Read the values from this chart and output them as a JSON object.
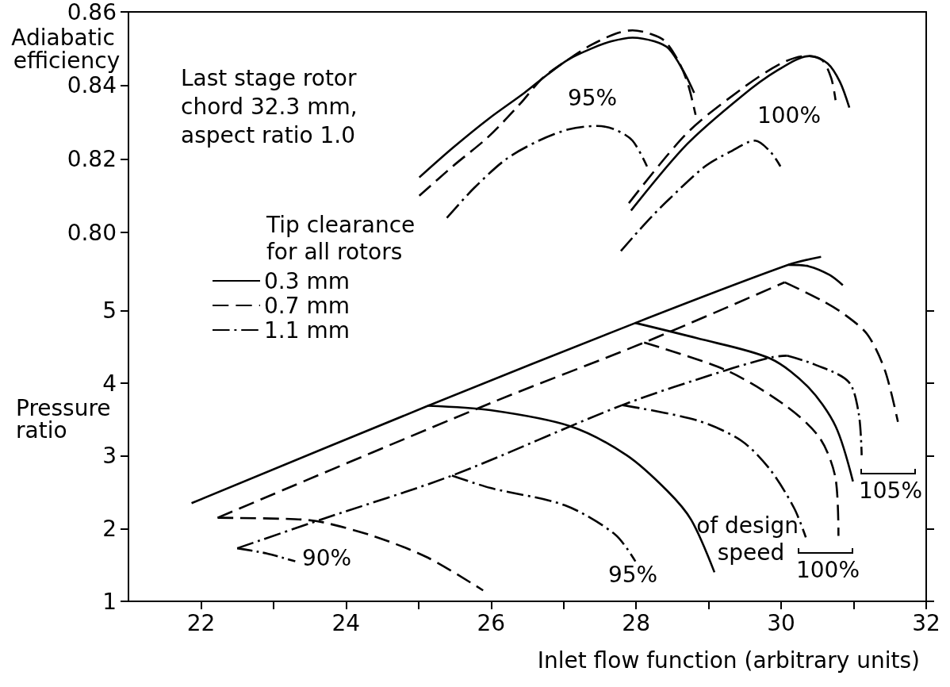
{
  "chart_data": [
    {
      "type": "line",
      "ylabel": "Adiabatic efficiency",
      "xlim": [
        21,
        32
      ],
      "ylim": [
        0.794,
        0.86
      ],
      "yticks": [
        {
          "value": 0.8,
          "label": "0.80"
        },
        0.82,
        0.84,
        0.86
      ],
      "tick_labels": "y",
      "grid": false,
      "marker": "none",
      "series": [
        {
          "color": "#000000",
          "line_style": "solid",
          "x": [
            25.01,
            25.47,
            25.97,
            26.46,
            26.78,
            27.06,
            27.38,
            27.66,
            27.95,
            28.25,
            28.45,
            28.65,
            28.8
          ],
          "values": [
            0.815,
            0.823,
            0.831,
            0.838,
            0.843,
            0.847,
            0.85,
            0.852,
            0.853,
            0.852,
            0.85,
            0.844,
            0.838
          ]
        },
        {
          "color": "#000000",
          "line_style": "solid",
          "x": [
            27.93,
            28.7,
            29.45,
            29.94,
            30.39,
            30.64,
            30.81,
            30.94
          ],
          "values": [
            0.806,
            0.824,
            0.837,
            0.844,
            0.848,
            0.846,
            0.841,
            0.834
          ]
        },
        {
          "color": "#000000",
          "line_style": "dashed",
          "x": [
            25.01,
            25.47,
            25.96,
            26.4,
            26.71,
            27.06,
            27.38,
            27.71,
            27.95,
            28.2,
            28.4,
            28.6,
            28.72,
            28.82
          ],
          "values": [
            0.81,
            0.818,
            0.826,
            0.835,
            0.842,
            0.847,
            0.851,
            0.854,
            0.855,
            0.854,
            0.852,
            0.846,
            0.84,
            0.832
          ]
        },
        {
          "color": "#000000",
          "line_style": "dashed",
          "x": [
            27.9,
            28.7,
            29.45,
            30.0,
            30.34,
            30.56,
            30.69,
            30.75
          ],
          "values": [
            0.808,
            0.827,
            0.839,
            0.846,
            0.848,
            0.847,
            0.842,
            0.836
          ]
        },
        {
          "color": "#000000",
          "line_style": "dashdot",
          "x": [
            25.39,
            25.76,
            26.21,
            26.66,
            27.06,
            27.46,
            27.71,
            27.95,
            28.15
          ],
          "values": [
            0.804,
            0.812,
            0.82,
            0.825,
            0.828,
            0.829,
            0.828,
            0.825,
            0.818
          ]
        },
        {
          "color": "#000000",
          "line_style": "dashdot",
          "x": [
            27.79,
            28.15,
            28.45,
            28.95,
            29.3,
            29.64,
            29.85,
            29.99
          ],
          "values": [
            0.795,
            0.803,
            0.809,
            0.818,
            0.822,
            0.825,
            0.822,
            0.818
          ]
        }
      ],
      "annotations": [
        "Last stage rotor chord 32.3 mm, aspect ratio 1.0",
        "95%",
        "100%"
      ]
    },
    {
      "type": "line",
      "xlabel": "Inlet flow function (arbitrary units)",
      "ylabel": "Pressure ratio",
      "legend_title": "Tip clearance for all rotors",
      "xlim": [
        21,
        32
      ],
      "xticks": [
        22,
        {
          "value": 23,
          "label": null
        },
        24,
        {
          "value": 25,
          "label": null
        },
        26,
        {
          "value": 27,
          "label": null
        },
        28,
        {
          "value": 29,
          "label": null
        },
        30,
        {
          "value": 31,
          "label": null
        },
        32
      ],
      "ylim": [
        1,
        5.77
      ],
      "yticks": [
        1,
        2,
        3,
        4,
        5
      ],
      "legend": "left",
      "grid": false,
      "marker": "none",
      "series": [
        {
          "name": "0.3 mm",
          "color": "#000000",
          "line_style": "solid",
          "x": [
            21.87,
            25.13,
            27.99,
            30.1,
            30.55
          ],
          "values": [
            2.35,
            3.69,
            4.83,
            5.63,
            5.74
          ]
        },
        {
          "color": "#000000",
          "line_style": "solid",
          "x": [
            25.13,
            25.99,
            27.09,
            27.87,
            28.43,
            28.76,
            29.08
          ],
          "values": [
            3.69,
            3.63,
            3.41,
            3.01,
            2.52,
            2.12,
            1.4
          ]
        },
        {
          "color": "#000000",
          "line_style": "solid",
          "x": [
            27.99,
            28.84,
            29.85,
            30.38,
            30.75,
            30.99
          ],
          "values": [
            4.83,
            4.62,
            4.34,
            3.94,
            3.41,
            2.65
          ]
        },
        {
          "color": "#000000",
          "line_style": "solid",
          "x": [
            30.1,
            30.38,
            30.67,
            30.85
          ],
          "values": [
            5.63,
            5.61,
            5.49,
            5.35
          ]
        },
        {
          "name": "0.7 mm",
          "color": "#000000",
          "line_style": "dashed",
          "x": [
            22.23,
            26.0,
            28.11,
            30.05
          ],
          "values": [
            2.15,
            3.73,
            4.56,
            5.39
          ]
        },
        {
          "color": "#000000",
          "line_style": "dashed",
          "x": [
            22.23,
            23.3,
            23.67,
            24.4,
            25.13,
            25.89
          ],
          "values": [
            2.15,
            2.13,
            2.09,
            1.89,
            1.6,
            1.15
          ]
        },
        {
          "color": "#000000",
          "line_style": "dashed",
          "x": [
            28.11,
            29.24,
            30.05,
            30.53,
            30.75,
            30.79
          ],
          "values": [
            4.56,
            4.18,
            3.7,
            3.25,
            2.69,
            1.9
          ]
        },
        {
          "color": "#000000",
          "line_style": "dashed",
          "x": [
            30.05,
            30.54,
            30.87,
            31.19,
            31.43,
            31.61
          ],
          "values": [
            5.39,
            5.15,
            4.95,
            4.67,
            4.18,
            3.47
          ]
        },
        {
          "name": "1.1 mm",
          "color": "#000000",
          "line_style": "dashdot",
          "x": [
            22.5,
            23.67,
            25.46,
            27.81,
            29.24,
            29.88,
            30.08
          ],
          "values": [
            1.73,
            2.13,
            2.73,
            3.7,
            4.18,
            4.36,
            4.38
          ]
        },
        {
          "color": "#000000",
          "line_style": "dashdot",
          "x": [
            22.5,
            22.9,
            23.3
          ],
          "values": [
            1.73,
            1.66,
            1.55
          ]
        },
        {
          "color": "#000000",
          "line_style": "dashdot",
          "x": [
            25.46,
            25.99,
            27.02,
            27.71,
            27.99
          ],
          "values": [
            2.73,
            2.56,
            2.32,
            1.92,
            1.55
          ]
        },
        {
          "color": "#000000",
          "line_style": "dashdot",
          "x": [
            27.81,
            28.84,
            29.45,
            29.85,
            30.18,
            30.34
          ],
          "values": [
            3.7,
            3.49,
            3.21,
            2.81,
            2.28,
            1.88
          ]
        },
        {
          "color": "#000000",
          "line_style": "dashdot",
          "x": [
            30.08,
            30.46,
            30.93,
            31.07,
            31.11
          ],
          "values": [
            4.38,
            4.26,
            4.02,
            3.58,
            3.01
          ]
        }
      ],
      "annotations": [
        "90%",
        "95%",
        "of design speed",
        "100%",
        "105%"
      ]
    }
  ]
}
